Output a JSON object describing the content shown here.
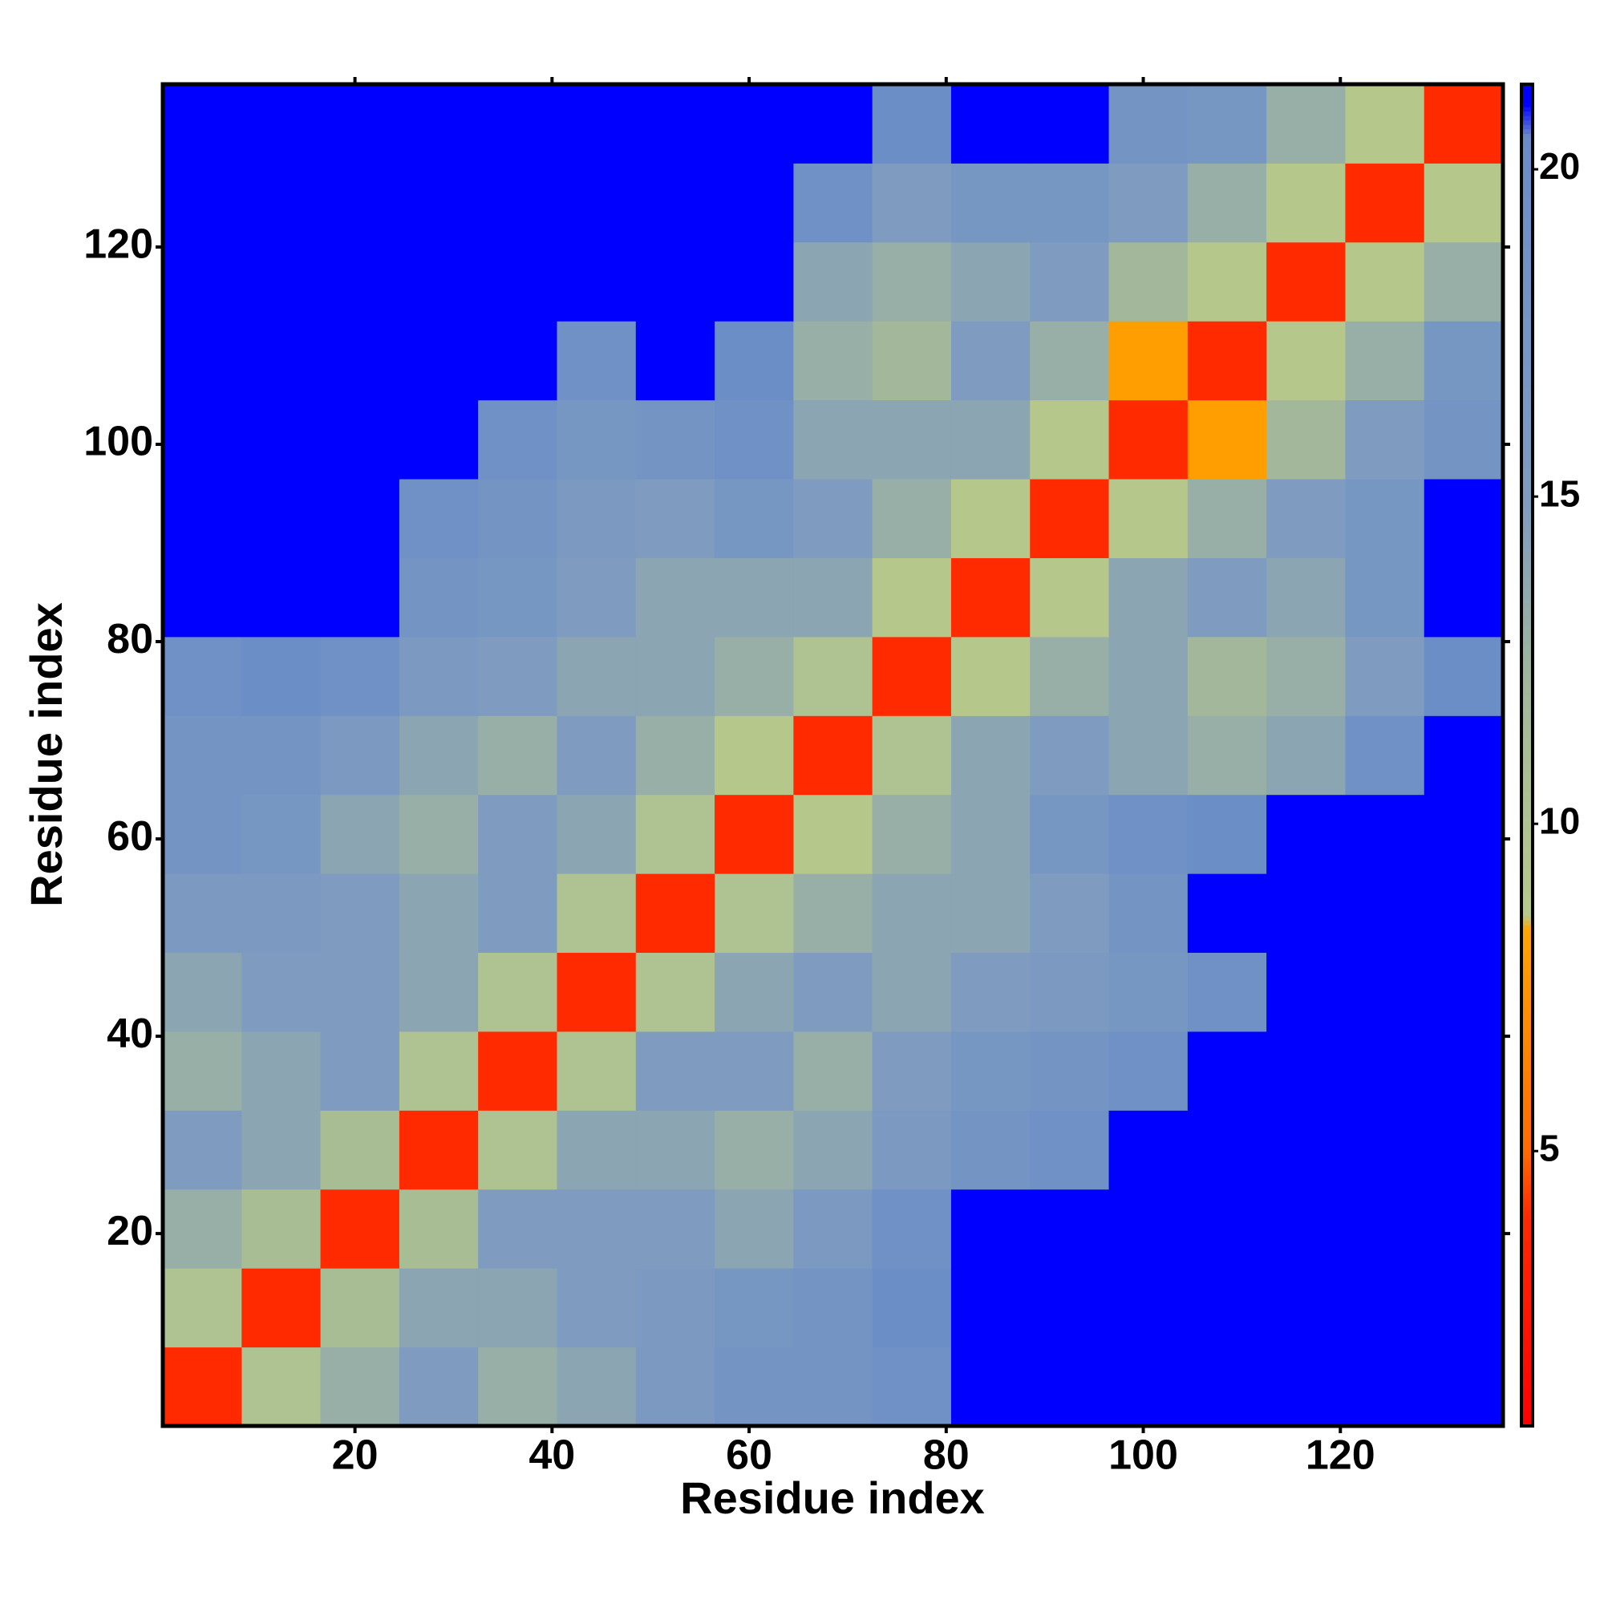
{
  "chart_data": {
    "type": "heatmap",
    "xlabel": "Residue index",
    "ylabel": "Residue index",
    "xbins": [
      0.5,
      8.5,
      16.5,
      24.5,
      32.5,
      40.5,
      48.5,
      56.5,
      64.5,
      72.5,
      80.5,
      88.5,
      96.5,
      104.5,
      112.5,
      120.5,
      128.5,
      136.5
    ],
    "ybins": [
      0.5,
      8.5,
      16.5,
      24.5,
      32.5,
      40.5,
      48.5,
      56.5,
      64.5,
      72.5,
      80.5,
      88.5,
      96.5,
      104.5,
      112.5,
      120.5,
      128.5,
      136.5
    ],
    "z": [
      [
        4,
        10,
        13,
        15,
        13,
        14,
        16,
        18,
        18,
        19,
        22,
        22,
        22,
        22,
        22,
        22,
        22
      ],
      [
        10,
        4,
        11,
        14,
        14,
        15,
        16,
        17,
        18,
        20,
        21,
        22,
        22,
        22,
        22,
        22,
        22
      ],
      [
        13,
        11,
        4,
        11,
        15,
        15,
        15,
        14,
        16,
        19,
        21,
        21,
        22,
        22,
        22,
        22,
        22
      ],
      [
        15,
        14,
        11,
        4,
        10,
        14,
        14,
        13,
        14,
        16,
        18,
        19,
        22,
        22,
        22,
        22,
        22
      ],
      [
        13,
        14,
        15,
        10,
        4,
        10,
        15,
        15,
        13,
        15,
        17,
        18,
        19,
        21,
        22,
        22,
        22
      ],
      [
        14,
        15,
        15,
        14,
        10,
        4,
        10,
        14,
        15,
        14,
        15,
        16,
        17,
        19,
        22,
        22,
        22
      ],
      [
        16,
        16,
        15,
        14,
        15,
        10,
        4,
        10,
        13,
        14,
        14,
        15,
        18,
        21,
        22,
        22,
        22
      ],
      [
        18,
        17,
        14,
        13,
        15,
        14,
        10,
        4,
        9,
        13,
        14,
        17,
        19,
        20,
        22,
        22,
        22
      ],
      [
        18,
        18,
        16,
        14,
        13,
        15,
        13,
        9,
        4,
        10,
        14,
        15,
        14,
        13,
        14,
        19,
        22
      ],
      [
        19,
        20,
        19,
        16,
        15,
        14,
        14,
        13,
        10,
        4,
        9,
        13,
        14,
        12,
        13,
        15,
        20
      ],
      [
        22,
        21,
        21,
        18,
        17,
        15,
        14,
        14,
        14,
        9,
        4,
        9,
        14,
        15,
        14,
        17,
        22
      ],
      [
        22,
        22,
        21,
        19,
        18,
        16,
        15,
        17,
        15,
        13,
        9,
        4,
        9,
        13,
        15,
        17,
        21
      ],
      [
        22,
        22,
        22,
        22,
        19,
        17,
        18,
        19,
        14,
        14,
        14,
        9,
        4,
        8,
        12,
        15,
        18
      ],
      [
        22,
        22,
        22,
        22,
        21,
        19,
        21,
        20,
        13,
        12,
        15,
        13,
        8,
        4,
        9,
        13,
        17
      ],
      [
        22,
        22,
        22,
        22,
        22,
        22,
        22,
        22,
        14,
        13,
        14,
        15,
        12,
        9,
        4,
        9,
        13
      ],
      [
        22,
        22,
        22,
        22,
        22,
        22,
        22,
        22,
        19,
        15,
        17,
        17,
        15,
        13,
        9,
        4,
        9
      ],
      [
        22,
        22,
        22,
        22,
        22,
        22,
        22,
        22,
        22,
        20,
        22,
        21,
        18,
        17,
        13,
        9,
        4
      ]
    ],
    "xlim": [
      0.5,
      136.5
    ],
    "ylim": [
      0.5,
      136.5
    ],
    "xticks": [
      20,
      40,
      60,
      80,
      100,
      120
    ],
    "yticks": [
      20,
      40,
      60,
      80,
      100,
      120
    ],
    "zlim": [
      0.8,
      21.3
    ],
    "zticks": [
      5,
      10,
      15,
      20
    ],
    "colorscale": [
      [
        0.8,
        "#ff0000"
      ],
      [
        4,
        "#ff2a00"
      ],
      [
        5,
        "#ff6a00"
      ],
      [
        8.4,
        "#ffa500"
      ],
      [
        8.6,
        "#b8c98a"
      ],
      [
        12,
        "#a3b89a"
      ],
      [
        15,
        "#7f9cc0"
      ],
      [
        20.5,
        "#6a8dc8"
      ],
      [
        21,
        "#0000ff"
      ]
    ]
  }
}
